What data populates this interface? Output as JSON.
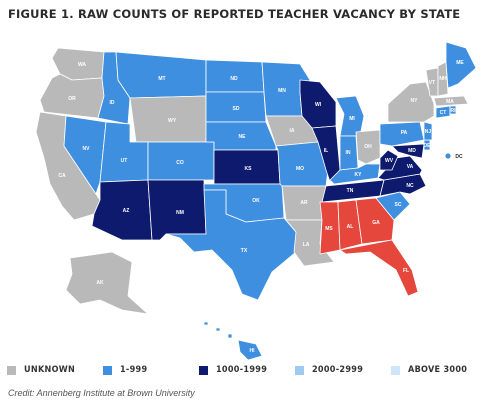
{
  "title": "FIGURE 1. RAW COUNTS OF REPORTED TEACHER VACANCY BY STATE",
  "credit": "Credit: Annenberg Institute at Brown University",
  "colors": {
    "unknown": "#b9b9b9",
    "range_1_999": "#3f8fe0",
    "range_1000_1999": "#0d1a6e",
    "range_2000_2999": "#9fcaf0",
    "above_3000": "#cfe6f8",
    "highlight_red": "#e5473c"
  },
  "legend": [
    {
      "key": "unknown",
      "label": "UNKNOWN"
    },
    {
      "key": "range_1_999",
      "label": "1-999"
    },
    {
      "key": "range_1000_1999",
      "label": "1000-1999"
    },
    {
      "key": "range_2000_2999",
      "label": "2000-2999"
    },
    {
      "key": "above_3000",
      "label": "ABOVE 3000"
    }
  ],
  "states": [
    {
      "abbr": "WA",
      "cat": "unknown"
    },
    {
      "abbr": "OR",
      "cat": "unknown"
    },
    {
      "abbr": "CA",
      "cat": "unknown"
    },
    {
      "abbr": "NV",
      "cat": "range_1_999"
    },
    {
      "abbr": "ID",
      "cat": "range_1_999"
    },
    {
      "abbr": "MT",
      "cat": "range_1_999"
    },
    {
      "abbr": "WY",
      "cat": "unknown"
    },
    {
      "abbr": "UT",
      "cat": "range_1_999"
    },
    {
      "abbr": "AZ",
      "cat": "range_1000_1999"
    },
    {
      "abbr": "CO",
      "cat": "range_1_999"
    },
    {
      "abbr": "NM",
      "cat": "range_1000_1999"
    },
    {
      "abbr": "ND",
      "cat": "range_1_999"
    },
    {
      "abbr": "SD",
      "cat": "range_1_999"
    },
    {
      "abbr": "NE",
      "cat": "range_1_999"
    },
    {
      "abbr": "KS",
      "cat": "range_1000_1999"
    },
    {
      "abbr": "OK",
      "cat": "range_1_999"
    },
    {
      "abbr": "TX",
      "cat": "range_1_999"
    },
    {
      "abbr": "MN",
      "cat": "range_1_999"
    },
    {
      "abbr": "IA",
      "cat": "unknown"
    },
    {
      "abbr": "MO",
      "cat": "range_1_999"
    },
    {
      "abbr": "AR",
      "cat": "unknown"
    },
    {
      "abbr": "LA",
      "cat": "unknown"
    },
    {
      "abbr": "WI",
      "cat": "range_1000_1999"
    },
    {
      "abbr": "IL",
      "cat": "range_1000_1999"
    },
    {
      "abbr": "MI",
      "cat": "range_1_999"
    },
    {
      "abbr": "IN",
      "cat": "range_1_999"
    },
    {
      "abbr": "OH",
      "cat": "unknown"
    },
    {
      "abbr": "KY",
      "cat": "range_1_999"
    },
    {
      "abbr": "TN",
      "cat": "range_1000_1999"
    },
    {
      "abbr": "MS",
      "cat": "highlight_red"
    },
    {
      "abbr": "AL",
      "cat": "highlight_red"
    },
    {
      "abbr": "GA",
      "cat": "highlight_red"
    },
    {
      "abbr": "FL",
      "cat": "highlight_red"
    },
    {
      "abbr": "SC",
      "cat": "range_1_999"
    },
    {
      "abbr": "NC",
      "cat": "range_1000_1999"
    },
    {
      "abbr": "VA",
      "cat": "range_1000_1999"
    },
    {
      "abbr": "WV",
      "cat": "range_1000_1999"
    },
    {
      "abbr": "MD",
      "cat": "range_1000_1999"
    },
    {
      "abbr": "DE",
      "cat": "range_1_999"
    },
    {
      "abbr": "PA",
      "cat": "range_1_999"
    },
    {
      "abbr": "NJ",
      "cat": "range_1_999"
    },
    {
      "abbr": "NY",
      "cat": "unknown"
    },
    {
      "abbr": "CT",
      "cat": "range_1_999"
    },
    {
      "abbr": "RI",
      "cat": "range_1_999"
    },
    {
      "abbr": "MA",
      "cat": "unknown"
    },
    {
      "abbr": "VT",
      "cat": "unknown"
    },
    {
      "abbr": "NH",
      "cat": "unknown"
    },
    {
      "abbr": "ME",
      "cat": "range_1_999"
    },
    {
      "abbr": "AK",
      "cat": "unknown"
    },
    {
      "abbr": "HI",
      "cat": "range_1_999"
    },
    {
      "abbr": "DC",
      "cat": "range_1_999"
    }
  ]
}
